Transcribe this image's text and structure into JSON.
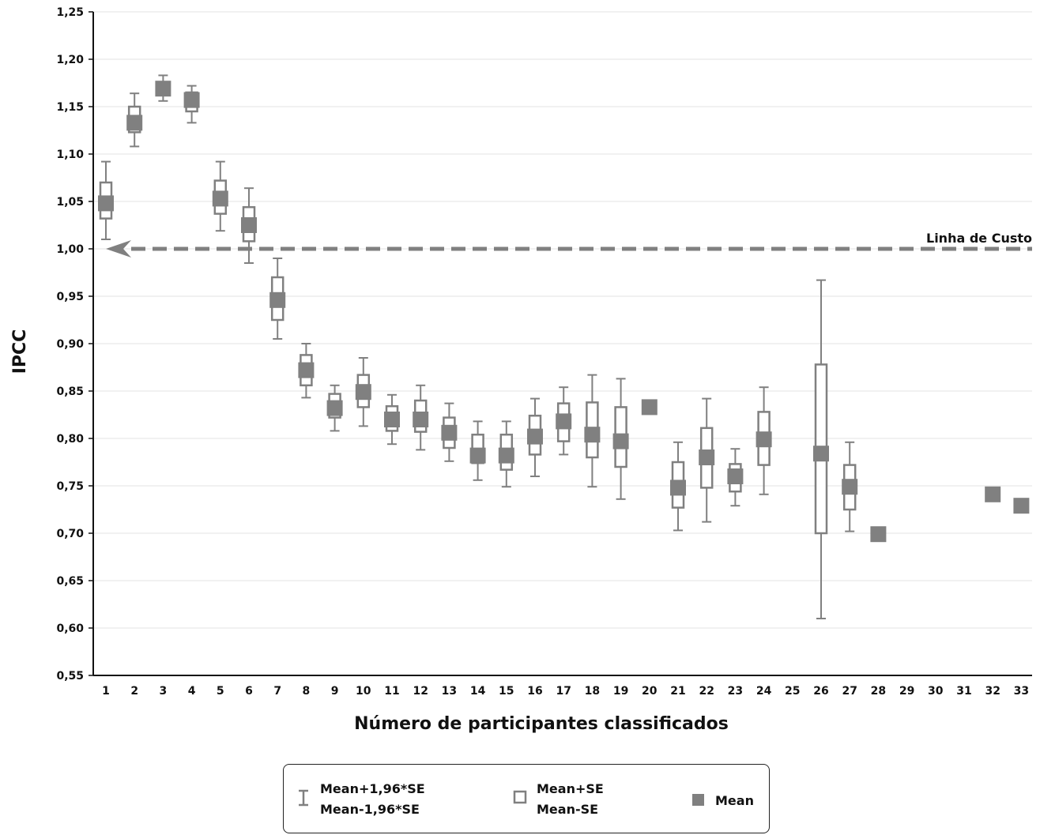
{
  "chart_data": {
    "type": "box",
    "xlabel": "Número de participantes classificados",
    "ylabel": "IPCC",
    "ylim": [
      0.55,
      1.25
    ],
    "yticks": [
      "0,55",
      "0,60",
      "0,65",
      "0,70",
      "0,75",
      "0,80",
      "0,85",
      "0,90",
      "0,95",
      "1,00",
      "1,05",
      "1,10",
      "1,15",
      "1,20",
      "1,25"
    ],
    "xticks": [
      "1",
      "2",
      "3",
      "4",
      "5",
      "6",
      "7",
      "8",
      "9",
      "10",
      "11",
      "12",
      "13",
      "14",
      "15",
      "16",
      "17",
      "18",
      "19",
      "20",
      "21",
      "22",
      "23",
      "24",
      "25",
      "26",
      "27",
      "28",
      "29",
      "30",
      "31",
      "32",
      "33"
    ],
    "grid": true,
    "reference_line": {
      "y": 1.0,
      "label": "Linha de Custo"
    },
    "points": [
      {
        "x": 1,
        "mean": 1.048,
        "se_low": 1.032,
        "se_high": 1.07,
        "ci_low": 1.01,
        "ci_high": 1.092
      },
      {
        "x": 2,
        "mean": 1.133,
        "se_low": 1.123,
        "se_high": 1.15,
        "ci_low": 1.108,
        "ci_high": 1.164
      },
      {
        "x": 3,
        "mean": 1.169,
        "se_low": 1.162,
        "se_high": 1.176,
        "ci_low": 1.156,
        "ci_high": 1.183
      },
      {
        "x": 4,
        "mean": 1.157,
        "se_low": 1.145,
        "se_high": 1.165,
        "ci_low": 1.133,
        "ci_high": 1.172
      },
      {
        "x": 5,
        "mean": 1.053,
        "se_low": 1.037,
        "se_high": 1.072,
        "ci_low": 1.019,
        "ci_high": 1.092
      },
      {
        "x": 6,
        "mean": 1.025,
        "se_low": 1.008,
        "se_high": 1.044,
        "ci_low": 0.985,
        "ci_high": 1.064
      },
      {
        "x": 7,
        "mean": 0.946,
        "se_low": 0.925,
        "se_high": 0.97,
        "ci_low": 0.905,
        "ci_high": 0.99
      },
      {
        "x": 8,
        "mean": 0.872,
        "se_low": 0.856,
        "se_high": 0.888,
        "ci_low": 0.843,
        "ci_high": 0.9
      },
      {
        "x": 9,
        "mean": 0.832,
        "se_low": 0.822,
        "se_high": 0.847,
        "ci_low": 0.808,
        "ci_high": 0.856
      },
      {
        "x": 10,
        "mean": 0.849,
        "se_low": 0.833,
        "se_high": 0.867,
        "ci_low": 0.813,
        "ci_high": 0.885
      },
      {
        "x": 11,
        "mean": 0.82,
        "se_low": 0.808,
        "se_high": 0.834,
        "ci_low": 0.794,
        "ci_high": 0.846
      },
      {
        "x": 12,
        "mean": 0.82,
        "se_low": 0.807,
        "se_high": 0.84,
        "ci_low": 0.788,
        "ci_high": 0.856
      },
      {
        "x": 13,
        "mean": 0.806,
        "se_low": 0.79,
        "se_high": 0.822,
        "ci_low": 0.776,
        "ci_high": 0.837
      },
      {
        "x": 14,
        "mean": 0.782,
        "se_low": 0.774,
        "se_high": 0.804,
        "ci_low": 0.756,
        "ci_high": 0.818
      },
      {
        "x": 15,
        "mean": 0.782,
        "se_low": 0.767,
        "se_high": 0.804,
        "ci_low": 0.749,
        "ci_high": 0.818
      },
      {
        "x": 16,
        "mean": 0.802,
        "se_low": 0.783,
        "se_high": 0.824,
        "ci_low": 0.76,
        "ci_high": 0.842
      },
      {
        "x": 17,
        "mean": 0.818,
        "se_low": 0.797,
        "se_high": 0.837,
        "ci_low": 0.783,
        "ci_high": 0.854
      },
      {
        "x": 18,
        "mean": 0.804,
        "se_low": 0.78,
        "se_high": 0.838,
        "ci_low": 0.749,
        "ci_high": 0.867
      },
      {
        "x": 19,
        "mean": 0.797,
        "se_low": 0.77,
        "se_high": 0.833,
        "ci_low": 0.736,
        "ci_high": 0.863
      },
      {
        "x": 20,
        "mean": 0.833
      },
      {
        "x": 21,
        "mean": 0.748,
        "se_low": 0.727,
        "se_high": 0.775,
        "ci_low": 0.703,
        "ci_high": 0.796
      },
      {
        "x": 22,
        "mean": 0.78,
        "se_low": 0.748,
        "se_high": 0.811,
        "ci_low": 0.712,
        "ci_high": 0.842
      },
      {
        "x": 23,
        "mean": 0.76,
        "se_low": 0.744,
        "se_high": 0.773,
        "ci_low": 0.729,
        "ci_high": 0.789
      },
      {
        "x": 24,
        "mean": 0.799,
        "se_low": 0.772,
        "se_high": 0.828,
        "ci_low": 0.741,
        "ci_high": 0.854
      },
      {
        "x": 26,
        "mean": 0.784,
        "se_low": 0.7,
        "se_high": 0.878,
        "ci_low": 0.61,
        "ci_high": 0.967
      },
      {
        "x": 27,
        "mean": 0.749,
        "se_low": 0.725,
        "se_high": 0.772,
        "ci_low": 0.702,
        "ci_high": 0.796
      },
      {
        "x": 28,
        "mean": 0.699
      },
      {
        "x": 32,
        "mean": 0.741
      },
      {
        "x": 33,
        "mean": 0.729
      }
    ],
    "legend": {
      "position": "bottom",
      "items": [
        {
          "symbol": "whisker",
          "lines": [
            "Mean+1,96*SE",
            "Mean-1,96*SE"
          ]
        },
        {
          "symbol": "box",
          "lines": [
            "Mean+SE",
            "Mean-SE"
          ]
        },
        {
          "symbol": "square",
          "lines": [
            "Mean"
          ]
        }
      ]
    },
    "colors": {
      "marker": "#808080",
      "grid": "#e3e3e3",
      "axis": "#111111",
      "reference": "#808080"
    }
  }
}
